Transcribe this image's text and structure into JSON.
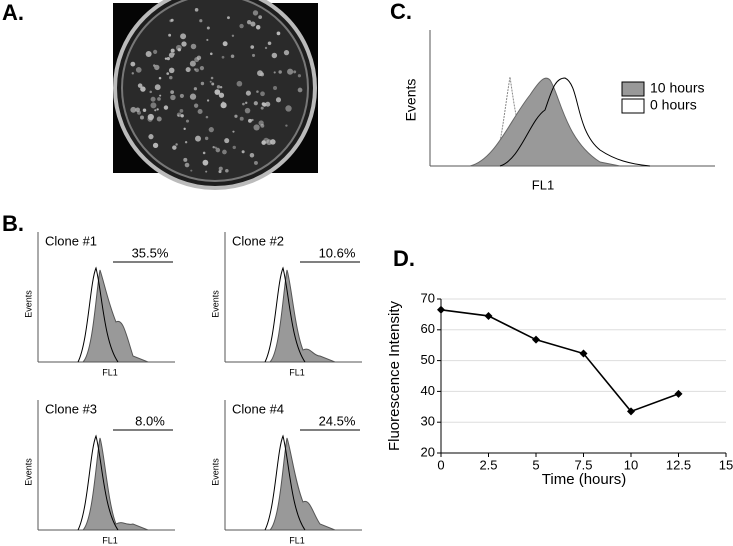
{
  "panels": {
    "A": {
      "label": "A."
    },
    "B": {
      "label": "B.",
      "clones": [
        {
          "name": "Clone #1",
          "percent": "35.5%",
          "y_label": "Events",
          "x_label": "FL1"
        },
        {
          "name": "Clone #2",
          "percent": "10.6%",
          "y_label": "Events",
          "x_label": "FL1"
        },
        {
          "name": "Clone #3",
          "percent": "8.0%",
          "y_label": "Events",
          "x_label": "FL1"
        },
        {
          "name": "Clone #4",
          "percent": "24.5%",
          "y_label": "Events",
          "x_label": "FL1"
        }
      ]
    },
    "C": {
      "label": "C.",
      "y_label": "Events",
      "x_label": "FL1",
      "legend": [
        "10 hours",
        "0 hours"
      ]
    },
    "D": {
      "label": "D."
    }
  },
  "chart_data": {
    "type": "line",
    "x_label": "Time (hours)",
    "y_label": "Fluorescence Intensity",
    "x": [
      0,
      2.5,
      5,
      7.5,
      10,
      12.5
    ],
    "values": [
      66.5,
      64.5,
      56.8,
      52.3,
      33.5,
      39.2
    ],
    "color": "#000000",
    "xlim": [
      0,
      15
    ],
    "xticks": [
      0,
      2.5,
      5,
      7.5,
      10,
      12.5,
      15
    ],
    "ylim": [
      20,
      70
    ],
    "yticks": [
      20,
      30,
      40,
      50,
      60,
      70
    ],
    "grid": true
  }
}
